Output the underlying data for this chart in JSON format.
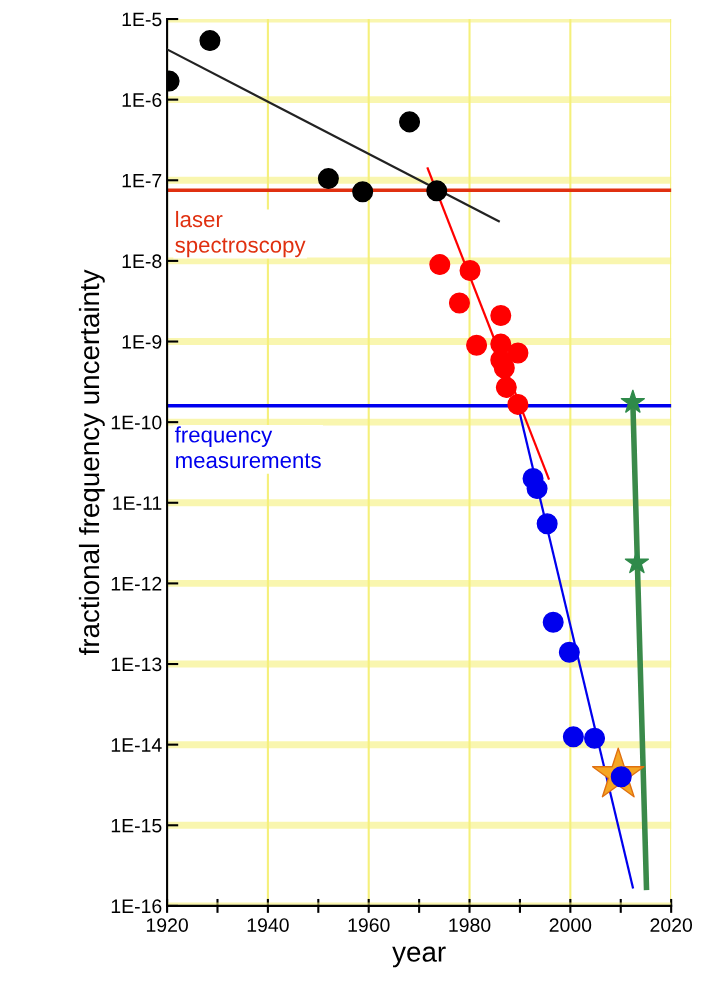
{
  "chart_data": {
    "type": "scatter",
    "xlabel": "year",
    "ylabel": "fractional frequency uncertainty",
    "log": "y",
    "marker": "circle",
    "grid": true,
    "xlim": [
      1920,
      2020
    ],
    "xticks": [
      1920,
      {
        "value": 1930,
        "label": null
      },
      1940,
      {
        "value": 1950,
        "label": null
      },
      1960,
      {
        "value": 1970,
        "label": null
      },
      1980,
      {
        "value": 1990,
        "label": null
      },
      2000,
      {
        "value": 2010,
        "label": null
      },
      2020
    ],
    "ylim": [
      1e-16,
      1e-05
    ],
    "yticks": [
      {
        "value": 1e-16,
        "label": "1E-16"
      },
      {
        "value": 1e-15,
        "label": "1E-15"
      },
      {
        "value": 1e-14,
        "label": "1E-14"
      },
      {
        "value": 1e-13,
        "label": "1E-13"
      },
      {
        "value": 1e-12,
        "label": "1E-12"
      },
      {
        "value": 1e-11,
        "label": "1E-11"
      },
      {
        "value": 1e-10,
        "label": "1E-10"
      },
      {
        "value": 1e-09,
        "label": "1E-9"
      },
      {
        "value": 1e-08,
        "label": "1E-8"
      },
      {
        "value": 1e-07,
        "label": "1E-7"
      },
      {
        "value": 1e-06,
        "label": "1E-6"
      },
      {
        "value": 1e-05,
        "label": "1E-5"
      }
    ],
    "ref_lines": [
      {
        "axis": "y",
        "value": 7.5e-08,
        "label": "laser\nspectroscopy",
        "color": "#e03010"
      },
      {
        "axis": "y",
        "value": 1.6e-10,
        "label": "frequency\nmeasurements",
        "color": "#0000ee"
      }
    ],
    "series": [
      {
        "type": "line",
        "color": "#222222",
        "x": [
          1920,
          1985.8
        ],
        "values": [
          4.2e-06,
          3.1e-08
        ],
        "marker": "none"
      },
      {
        "type": "line",
        "color": "#ff0000",
        "x": [
          1971.7,
          1995.7
        ],
        "values": [
          1.4e-07,
          2e-11
        ],
        "marker": "none"
      },
      {
        "type": "line",
        "color": "#0000ee",
        "x": [
          1990.0,
          2012.4
        ],
        "values": [
          1.26e-10,
          1.7e-16
        ],
        "marker": "none"
      },
      {
        "type": "line",
        "color": "#3a8a4a",
        "x": [
          2012.4,
          2015.1
        ],
        "values": [
          1.76e-10,
          1.7e-16
        ],
        "marker": "none"
      },
      {
        "color": "#000000",
        "x": [
          1920.4,
          1928.5,
          1952,
          1958.8,
          1968.1,
          1973.5
        ],
        "values": [
          1.7e-06,
          5.4e-06,
          1.05e-07,
          7.2e-08,
          5.3e-07,
          7.4e-08
        ]
      },
      {
        "color": "#ff0000",
        "x": [
          1974.1,
          1980.1,
          1978.0,
          1986.2,
          1981.4,
          1986.2,
          1989.6,
          1986.2,
          1986.9,
          1987.3,
          1989.6
        ],
        "values": [
          9e-09,
          7.6e-09,
          3e-09,
          2.1e-09,
          9e-10,
          9.3e-10,
          7.2e-10,
          5.9e-10,
          4.7e-10,
          2.7e-10,
          1.66e-10
        ]
      },
      {
        "color": "#f5a623",
        "marker": "star",
        "x": [
          2009.5
        ],
        "values": [
          4.2e-15
        ]
      },
      {
        "color": "#0000ee",
        "x": [
          1992.6,
          1993.4,
          1995.4,
          1996.6,
          1999.8,
          2000.6,
          2004.8,
          2010.1
        ],
        "values": [
          2e-11,
          1.5e-11,
          5.5e-12,
          3.3e-13,
          1.4e-13,
          1.25e-14,
          1.2e-14,
          4e-15
        ]
      },
      {
        "color": "#2f8a4a",
        "marker": "star",
        "x": [
          2012.4,
          2013.2
        ],
        "values": [
          1.76e-10,
          1.8e-12
        ]
      }
    ]
  }
}
